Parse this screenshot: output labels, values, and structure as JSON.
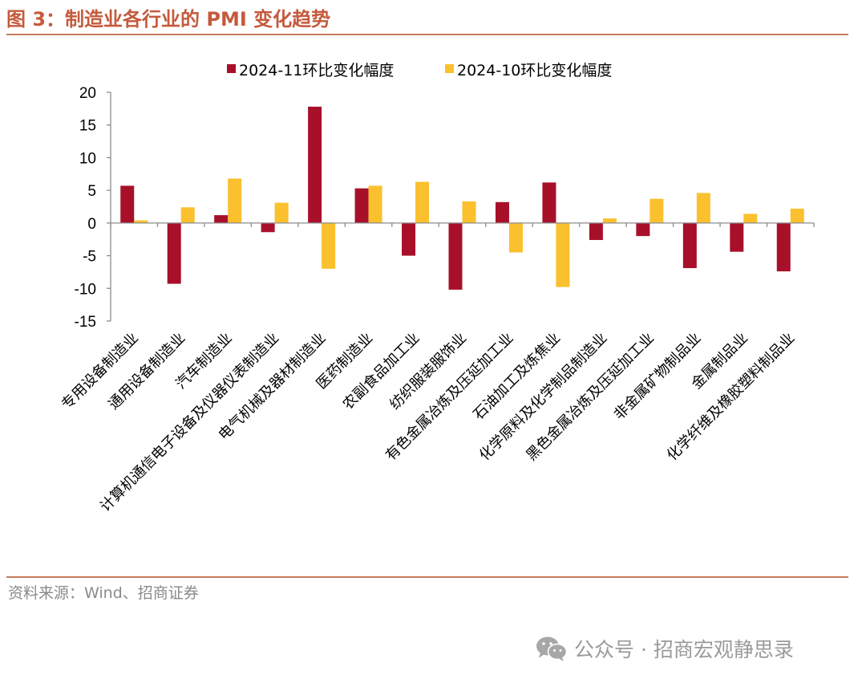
{
  "header": {
    "title": "图 3：制造业各行业的 PMI 变化趋势"
  },
  "footer": {
    "source": "资料来源：Wind、招商证券"
  },
  "watermark": {
    "text": "公众号 · 招商宏观静思录",
    "icon": "wechat-icon"
  },
  "colors": {
    "series1": "#a8102a",
    "series2": "#fbc02d",
    "accent": "#c55a3c"
  },
  "chart_data": {
    "type": "bar",
    "title": "",
    "xlabel": "",
    "ylabel": "",
    "ylim": [
      -15,
      20
    ],
    "yticks": [
      20,
      15,
      10,
      5,
      0,
      -5,
      -10,
      -15
    ],
    "legend_position": "top-center",
    "grid": false,
    "categories": [
      "专用设备制造业",
      "通用设备制造业",
      "汽车制造业",
      "计算机通信电子设备及仪器仪表制造业",
      "电气机械及器材制造业",
      "医药制造业",
      "农副食品加工业",
      "纺织服装服饰业",
      "有色金属冶炼及压延加工业",
      "石油加工及炼焦业",
      "化学原料及化学制品制造业",
      "黑色金属冶炼及压延加工业",
      "非金属矿物制品业",
      "金属制品业",
      "化学纤维及橡胶塑料制品业"
    ],
    "series": [
      {
        "name": "2024-11环比变化幅度",
        "color": "#a8102a",
        "values": [
          5.7,
          -9.3,
          1.2,
          -1.4,
          17.8,
          5.3,
          -5.0,
          -10.2,
          3.2,
          6.2,
          -2.6,
          -2.0,
          -6.9,
          -4.4,
          -7.4
        ]
      },
      {
        "name": "2024-10环比变化幅度",
        "color": "#fbc02d",
        "values": [
          0.4,
          2.4,
          6.8,
          3.1,
          -7.0,
          5.7,
          6.3,
          3.3,
          -4.5,
          -9.8,
          0.7,
          3.7,
          4.6,
          1.4,
          2.2
        ]
      }
    ]
  }
}
